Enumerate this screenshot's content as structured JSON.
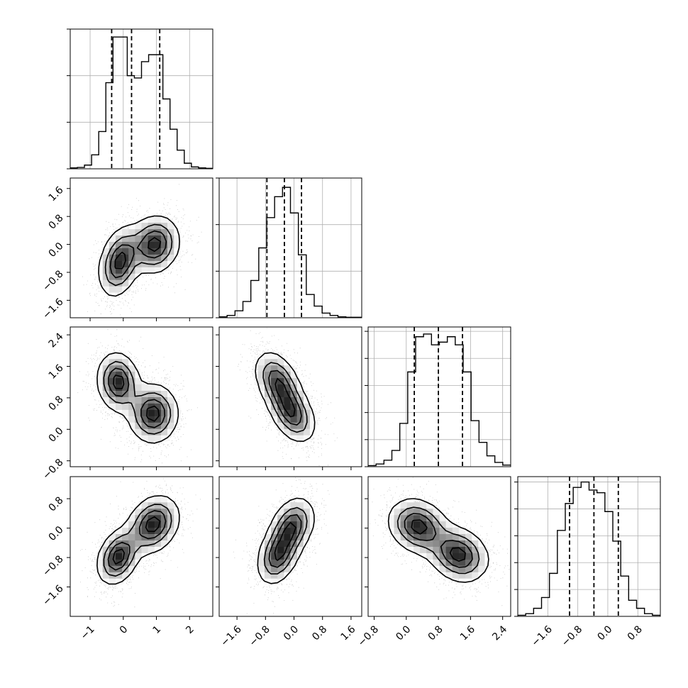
{
  "colors": {
    "line": "#000000",
    "grid": "#b0b0b0",
    "scatter": "#9a9a9a",
    "background": "#ffffff"
  },
  "chart_data": {
    "type": "corner",
    "grid": true,
    "variables": [
      {
        "name": "",
        "range": [
          -1.6,
          2.7
        ],
        "ticks": [
          -1,
          0,
          1,
          2
        ],
        "tick_labels": [
          "−1",
          "0",
          "1",
          "2"
        ],
        "quantiles": [
          -0.35,
          0.25,
          1.1
        ]
      },
      {
        "name": "",
        "range": [
          -2.1,
          1.9
        ],
        "ticks": [
          -1.6,
          -0.8,
          0.0,
          0.8,
          1.6
        ],
        "tick_labels": [
          "−1.6",
          "−0.8",
          "0.0",
          "0.8",
          "1.6"
        ],
        "quantiles": [
          -0.76,
          -0.27,
          0.21
        ]
      },
      {
        "name": "",
        "range": [
          -0.95,
          2.6
        ],
        "ticks": [
          -0.8,
          0.0,
          0.8,
          1.6,
          2.4
        ],
        "tick_labels": [
          "−0.8",
          "0.0",
          "0.8",
          "1.6",
          "2.4"
        ],
        "quantiles": [
          0.2,
          0.8,
          1.4
        ]
      },
      {
        "name": "",
        "range": [
          -2.4,
          1.4
        ],
        "ticks": [
          -1.6,
          -0.8,
          0.0,
          0.8
        ],
        "tick_labels": [
          "−1.6",
          "−0.8",
          "0.0",
          "0.8"
        ],
        "quantiles": [
          -1.02,
          -0.37,
          0.28
        ]
      }
    ],
    "histograms": [
      [
        2,
        3,
        8,
        30,
        80,
        185,
        283,
        283,
        200,
        195,
        230,
        245,
        245,
        150,
        85,
        40,
        12,
        4,
        2,
        1
      ],
      [
        2,
        5,
        15,
        35,
        80,
        150,
        215,
        260,
        280,
        225,
        135,
        50,
        25,
        10,
        5,
        2,
        1,
        1
      ],
      [
        2,
        5,
        12,
        30,
        80,
        175,
        240,
        245,
        225,
        230,
        240,
        225,
        175,
        85,
        45,
        20,
        8,
        3
      ],
      [
        2,
        5,
        15,
        35,
        80,
        160,
        210,
        240,
        250,
        235,
        230,
        195,
        140,
        75,
        30,
        15,
        5,
        2
      ]
    ],
    "hist_tick_counts": [
      [
        0,
        100,
        200,
        300
      ],
      [
        0,
        100,
        200,
        300
      ],
      [
        0,
        50,
        100,
        150,
        200,
        250
      ],
      [
        0,
        50,
        100,
        150,
        200,
        250
      ]
    ],
    "hist_ymax": [
      300,
      300,
      258,
      260
    ],
    "pairs": [
      {
        "x": 0,
        "y": 1,
        "modes": [
          {
            "mx": -0.1,
            "my": -0.5,
            "sx": 0.32,
            "sy": 0.5,
            "rho": 0.3
          },
          {
            "mx": 0.95,
            "my": 0.0,
            "sx": 0.38,
            "sy": 0.42,
            "rho": 0.1
          }
        ]
      },
      {
        "x": 0,
        "y": 2,
        "modes": [
          {
            "mx": -0.15,
            "my": 1.2,
            "sx": 0.32,
            "sy": 0.38,
            "rho": -0.1
          },
          {
            "mx": 0.9,
            "my": 0.4,
            "sx": 0.38,
            "sy": 0.38,
            "rho": 0.0
          }
        ]
      },
      {
        "x": 1,
        "y": 2,
        "modes": [
          {
            "mx": -0.45,
            "my": 1.2,
            "sx": 0.33,
            "sy": 0.4,
            "rho": -0.4
          },
          {
            "mx": -0.05,
            "my": 0.4,
            "sx": 0.33,
            "sy": 0.38,
            "rho": -0.4
          }
        ]
      },
      {
        "x": 0,
        "y": 3,
        "modes": [
          {
            "mx": -0.15,
            "my": -0.78,
            "sx": 0.32,
            "sy": 0.38,
            "rho": 0.3
          },
          {
            "mx": 0.9,
            "my": 0.1,
            "sx": 0.4,
            "sy": 0.4,
            "rho": 0.25
          }
        ]
      },
      {
        "x": 1,
        "y": 3,
        "modes": [
          {
            "mx": -0.45,
            "my": -0.75,
            "sx": 0.3,
            "sy": 0.4,
            "rho": 0.3
          },
          {
            "mx": -0.05,
            "my": 0.05,
            "sx": 0.32,
            "sy": 0.4,
            "rho": 0.3
          }
        ]
      },
      {
        "x": 2,
        "y": 3,
        "modes": [
          {
            "mx": 0.3,
            "my": 0.05,
            "sx": 0.38,
            "sy": 0.38,
            "rho": -0.2
          },
          {
            "mx": 1.3,
            "my": -0.72,
            "sx": 0.38,
            "sy": 0.38,
            "rho": -0.2
          }
        ]
      }
    ]
  }
}
